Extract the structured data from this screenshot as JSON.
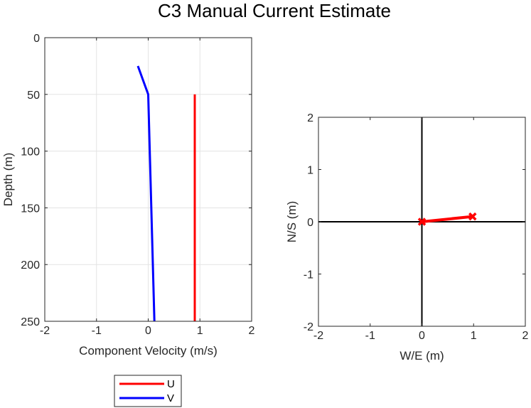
{
  "figure": {
    "title": "C3 Manual Current Estimate"
  },
  "chart_data": [
    {
      "type": "line",
      "name": "component-velocity-profile",
      "xlabel": "Component Velocity (m/s)",
      "ylabel": "Depth (m)",
      "xlim": [
        -2,
        2
      ],
      "ylim": [
        0,
        250
      ],
      "y_reversed": true,
      "xticks": [
        "-2",
        "-1",
        "0",
        "1",
        "2"
      ],
      "yticks": [
        "0",
        "50",
        "100",
        "150",
        "200",
        "250"
      ],
      "xtick_values": [
        -2,
        -1,
        0,
        1,
        2
      ],
      "ytick_values": [
        0,
        50,
        100,
        150,
        200,
        250
      ],
      "grid": true,
      "legend": "below",
      "series": [
        {
          "name": "U",
          "color": "#ff0000",
          "x": [
            0.9,
            0.9
          ],
          "y": [
            50,
            250
          ]
        },
        {
          "name": "V",
          "color": "#0000ff",
          "x": [
            -0.2,
            0.0,
            0.12
          ],
          "y": [
            25,
            50,
            250
          ]
        }
      ]
    },
    {
      "type": "line",
      "name": "current-vector",
      "xlabel": "W/E (m)",
      "ylabel": "N/S (m)",
      "xlim": [
        -2,
        2
      ],
      "ylim": [
        -2,
        2
      ],
      "xticks": [
        "-2",
        "-1",
        "0",
        "1",
        "2"
      ],
      "yticks": [
        "-2",
        "-1",
        "0",
        "1",
        "2"
      ],
      "xtick_values": [
        -2,
        -1,
        0,
        1,
        2
      ],
      "ytick_values": [
        -2,
        -1,
        0,
        1,
        2
      ],
      "grid": false,
      "zero_lines": true,
      "series": [
        {
          "color": "#ff0000",
          "x": [
            0,
            0.98
          ],
          "y": [
            0,
            0.1
          ],
          "marker": "x"
        }
      ]
    }
  ]
}
